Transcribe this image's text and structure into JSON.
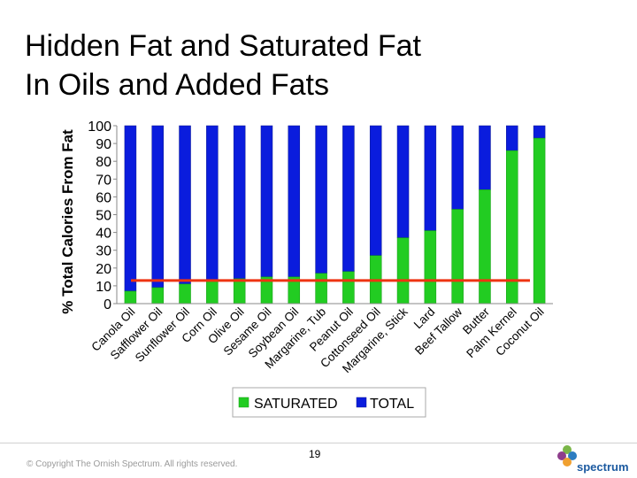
{
  "slide": {
    "title_line1": "Hidden Fat and Saturated Fat",
    "title_line2": "In Oils and Added Fats",
    "page_number": "19",
    "copyright": "© Copyright The Ornish Spectrum. All rights reserved.",
    "logo_text": "spectrum"
  },
  "colors": {
    "saturated": "#22cc22",
    "total": "#0a1cdd",
    "reference_line": "#ee3311"
  },
  "chart_data": {
    "type": "bar",
    "title": "",
    "xlabel": "",
    "ylabel": "% Total Calories From Fat",
    "ylim": [
      0,
      100
    ],
    "yticks": [
      0,
      10,
      20,
      30,
      40,
      50,
      60,
      70,
      80,
      90,
      100
    ],
    "categories": [
      "Canola Oil",
      "Safflower Oil",
      "Sunflower Oil",
      "Corn Oil",
      "Olive Oil",
      "Sesame Oil",
      "Soybean Oil",
      "Margarine, Tub",
      "Peanut Oil",
      "Cottonseed Oil",
      "Margarine, Stick",
      "Lard",
      "Beef Tallow",
      "Butter",
      "Palm Kernel",
      "Coconut Oil"
    ],
    "series": [
      {
        "name": "SATURATED",
        "values": [
          7,
          9,
          11,
          13,
          14,
          15,
          15,
          17,
          18,
          27,
          37,
          41,
          53,
          64,
          86,
          93
        ]
      },
      {
        "name": "TOTAL",
        "values": [
          100,
          100,
          100,
          100,
          100,
          100,
          100,
          100,
          100,
          100,
          100,
          100,
          100,
          100,
          100,
          100
        ]
      }
    ],
    "reference_line": {
      "value": 13
    },
    "legend_position": "bottom"
  }
}
